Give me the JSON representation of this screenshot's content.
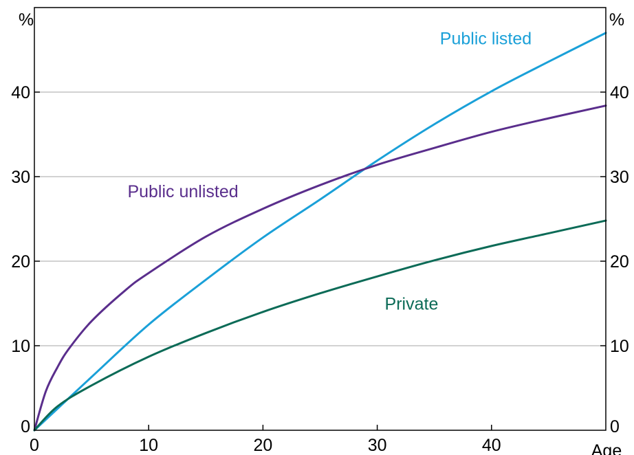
{
  "chart_data": {
    "type": "line",
    "x_unit_label": "Age",
    "y_unit_label_left": "%",
    "y_unit_label_right": "%",
    "xlim": [
      0,
      50
    ],
    "ylim": [
      0,
      50
    ],
    "x_ticks": [
      0,
      10,
      20,
      30,
      40
    ],
    "y_ticks": [
      0,
      10,
      20,
      30,
      40
    ],
    "grid": "horizontal",
    "series": [
      {
        "name": "Public listed",
        "color": "#1aa0d8",
        "x": [
          0,
          5,
          10,
          15,
          20,
          25,
          30,
          35,
          40,
          45,
          50
        ],
        "y": [
          0,
          6.3,
          12.5,
          17.8,
          22.8,
          27.3,
          31.9,
          36.2,
          40.1,
          43.6,
          47.0
        ]
      },
      {
        "name": "Public unlisted",
        "color": "#5a2e8c",
        "x": [
          0,
          1,
          2,
          3,
          5,
          8,
          10,
          15,
          20,
          25,
          30,
          35,
          40,
          45,
          50
        ],
        "y": [
          0,
          4.6,
          7.4,
          9.6,
          12.9,
          16.6,
          18.6,
          22.9,
          26.2,
          29.0,
          31.4,
          33.4,
          35.3,
          36.9,
          38.4
        ]
      },
      {
        "name": "Private",
        "color": "#0c6b57",
        "x": [
          0,
          2,
          5,
          10,
          15,
          20,
          25,
          30,
          35,
          40,
          45,
          50
        ],
        "y": [
          0,
          2.8,
          5.3,
          8.7,
          11.5,
          14.0,
          16.2,
          18.2,
          20.1,
          21.8,
          23.3,
          24.8
        ]
      }
    ],
    "series_label_positions": {
      "Public listed": [
        39.5,
        46.4
      ],
      "Public unlisted": [
        13.0,
        28.3
      ],
      "Private": [
        33.0,
        15.0
      ]
    }
  }
}
